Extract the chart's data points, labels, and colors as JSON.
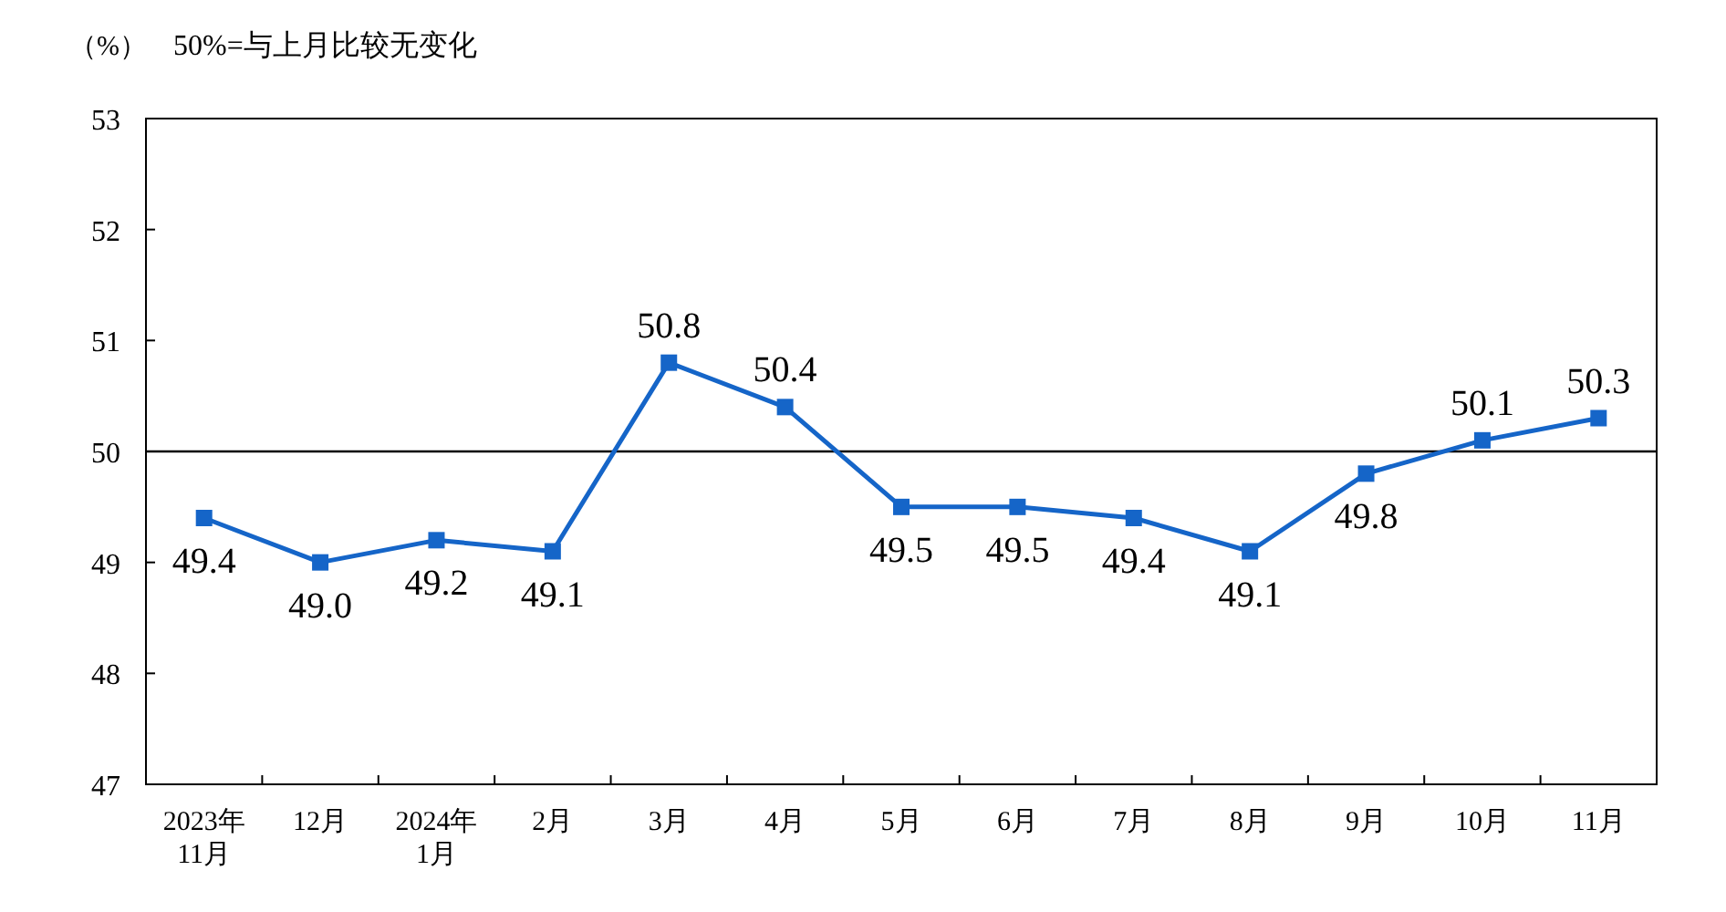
{
  "chart_data": {
    "type": "line",
    "ylabel": "（%）",
    "annotations": [
      "50%=与上月比较无变化"
    ],
    "categories": [
      "2023年\n11月",
      "12月",
      "2024年\n1月",
      "2月",
      "3月",
      "4月",
      "5月",
      "6月",
      "7月",
      "8月",
      "9月",
      "10月",
      "11月"
    ],
    "series": [
      {
        "color": "#1565c8",
        "values": [
          49.4,
          49.0,
          49.2,
          49.1,
          50.8,
          50.4,
          49.5,
          49.5,
          49.4,
          49.1,
          49.8,
          50.1,
          50.3
        ]
      }
    ],
    "value_labels": [
      "49.4",
      "49.0",
      "49.2",
      "49.1",
      "50.8",
      "50.4",
      "49.5",
      "49.5",
      "49.4",
      "49.1",
      "49.8",
      "50.1",
      "50.3"
    ],
    "ylim": [
      47,
      53
    ],
    "yticks": [
      47,
      48,
      49,
      50,
      51,
      52,
      53
    ],
    "ref_lines": [
      {
        "axis": "y",
        "value": 50,
        "color": "#000000"
      }
    ],
    "marker": "square",
    "line_style": "solid",
    "grid": false
  }
}
